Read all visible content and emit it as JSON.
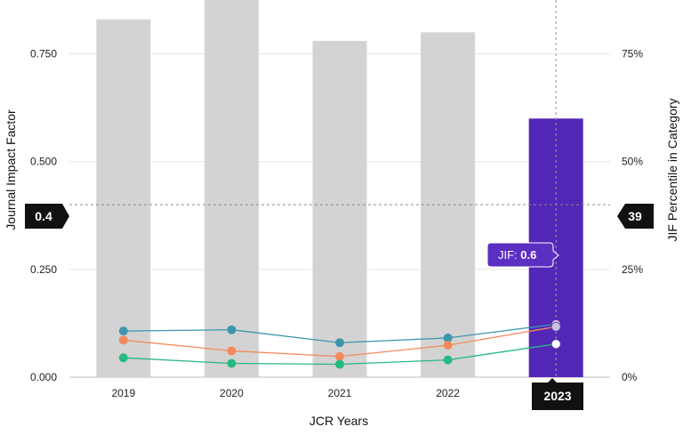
{
  "chart_data": {
    "type": "bar",
    "xlabel": "JCR Years",
    "ylabel": "Journal Impact Factor",
    "y2label": "JIF Percentile in Category",
    "categories": [
      "2019",
      "2020",
      "2021",
      "2022",
      "2023"
    ],
    "ylim": [
      0,
      0.875
    ],
    "y2lim": [
      0,
      87.5
    ],
    "yticks": [
      "0.000",
      "0.250",
      "0.500",
      "0.750"
    ],
    "ytick_values": [
      0,
      0.25,
      0.5,
      0.75
    ],
    "y2ticks": [
      "0%",
      "25%",
      "50%",
      "75%"
    ],
    "y2tick_values": [
      0,
      25,
      50,
      75
    ],
    "grid": true,
    "bars": {
      "values": [
        0.83,
        0.88,
        0.78,
        0.8,
        0.6
      ],
      "highlight_index": 4,
      "color": "#d3d3d3",
      "highlight_color": "#5227b7"
    },
    "series": [
      {
        "values": [
          10.7,
          11.0,
          8.0,
          9.1,
          12.3
        ],
        "color": "#3d96ac"
      },
      {
        "values": [
          8.6,
          6.1,
          4.8,
          7.4,
          11.7
        ],
        "color": "#f48a5d"
      },
      {
        "values": [
          4.5,
          3.2,
          3.0,
          4.0,
          7.7
        ],
        "color": "#27b981"
      }
    ],
    "crosshair": {
      "left_label": "0.4",
      "right_label": "39",
      "bottom_label": "2023"
    },
    "tooltip": {
      "prefix": "JIF: ",
      "value": "0.6"
    }
  }
}
